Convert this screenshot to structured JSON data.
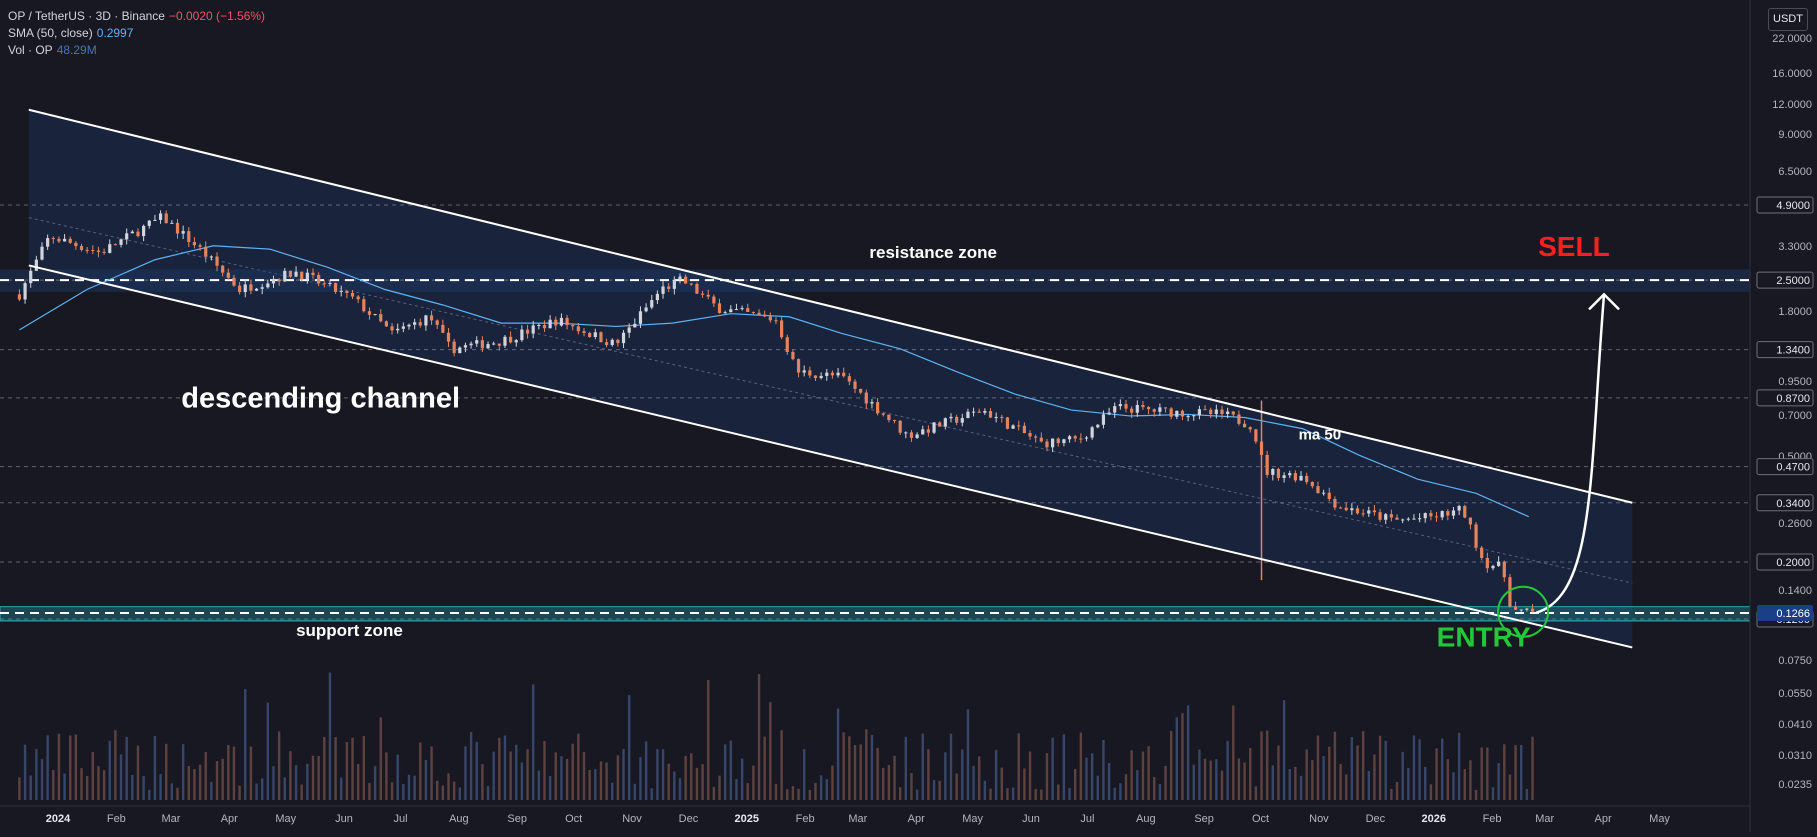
{
  "legend": {
    "symbol": "OP / TetherUS · 3D · Binance",
    "change": "−0.0020 (−1.56%)",
    "sma_label": "SMA (50, close)",
    "sma_value": "0.2997",
    "vol_label": "Vol · OP",
    "vol_value": "48.29M"
  },
  "currency": "USDT",
  "colors": {
    "background": "#181822",
    "channel_fill": "#1e3a66",
    "support_fill": "#1f6e7a",
    "up_candle": "#d1d4dc",
    "down_candle": "#e5845c",
    "sma_line": "#5eb2f3",
    "sell": "#ff1f1f",
    "entry": "#22c83a",
    "current_price": "#1b3f86"
  },
  "chart_data": {
    "type": "candlestick",
    "interval": "3D",
    "y_scale": "log",
    "x_ticks": [
      "2024",
      "Feb",
      "Mar",
      "Apr",
      "May",
      "Jun",
      "Jul",
      "Aug",
      "Sep",
      "Oct",
      "Nov",
      "Dec",
      "2025",
      "Feb",
      "Mar",
      "Apr",
      "May",
      "Jun",
      "Jul",
      "Aug",
      "Sep",
      "Oct",
      "Nov",
      "Dec",
      "2026",
      "Feb",
      "Mar",
      "Apr",
      "May"
    ],
    "y_ticks": [
      "22.0000",
      "16.0000",
      "12.0000",
      "9.0000",
      "6.5000",
      "3.3000",
      "1.8000",
      "0.9500",
      "0.7000",
      "0.5000",
      "0.2600",
      "0.1400",
      "0.0750",
      "0.0550",
      "0.0410",
      "0.0310",
      "0.0235"
    ],
    "price_levels": [
      {
        "value": 4.9,
        "label": "4.9000"
      },
      {
        "value": 2.5,
        "label": "2.5000"
      },
      {
        "value": 1.34,
        "label": "1.3400"
      },
      {
        "value": 0.87,
        "label": "0.8700"
      },
      {
        "value": 0.47,
        "label": "0.4700"
      },
      {
        "value": 0.34,
        "label": "0.3400"
      },
      {
        "value": 0.2,
        "label": "0.2000"
      },
      {
        "value": 0.12,
        "label": "0.1200"
      }
    ],
    "current_price": {
      "value": 0.1266,
      "label": "0.1266"
    },
    "closes_monthly": [
      {
        "date": "2023-12-20",
        "value": 2.2
      },
      {
        "date": "2024-01-05",
        "value": 3.7
      },
      {
        "date": "2024-02-01",
        "value": 3.2
      },
      {
        "date": "2024-03-05",
        "value": 4.4
      },
      {
        "date": "2024-03-25",
        "value": 3.3
      },
      {
        "date": "2024-04-15",
        "value": 2.3
      },
      {
        "date": "2024-05-15",
        "value": 2.7
      },
      {
        "date": "2024-06-15",
        "value": 2.1
      },
      {
        "date": "2024-07-05",
        "value": 1.55
      },
      {
        "date": "2024-07-25",
        "value": 1.8
      },
      {
        "date": "2024-08-05",
        "value": 1.35
      },
      {
        "date": "2024-09-01",
        "value": 1.45
      },
      {
        "date": "2024-10-01",
        "value": 1.75
      },
      {
        "date": "2024-11-01",
        "value": 1.4
      },
      {
        "date": "2024-11-25",
        "value": 2.3
      },
      {
        "date": "2024-12-06",
        "value": 2.5
      },
      {
        "date": "2024-12-25",
        "value": 1.95
      },
      {
        "date": "2025-01-25",
        "value": 1.75
      },
      {
        "date": "2025-02-05",
        "value": 1.1
      },
      {
        "date": "2025-03-01",
        "value": 1.05
      },
      {
        "date": "2025-04-05",
        "value": 0.62
      },
      {
        "date": "2025-05-15",
        "value": 0.78
      },
      {
        "date": "2025-06-15",
        "value": 0.58
      },
      {
        "date": "2025-07-05",
        "value": 0.6
      },
      {
        "date": "2025-07-25",
        "value": 0.8
      },
      {
        "date": "2025-08-20",
        "value": 0.77
      },
      {
        "date": "2025-09-20",
        "value": 0.75
      },
      {
        "date": "2025-10-05",
        "value": 0.68
      },
      {
        "date": "2025-10-12",
        "value": 0.45
      },
      {
        "date": "2025-11-01",
        "value": 0.43
      },
      {
        "date": "2025-11-20",
        "value": 0.33
      },
      {
        "date": "2025-12-20",
        "value": 0.29
      },
      {
        "date": "2026-01-10",
        "value": 0.3
      },
      {
        "date": "2026-01-25",
        "value": 0.32
      },
      {
        "date": "2026-02-05",
        "value": 0.2
      },
      {
        "date": "2026-02-15",
        "value": 0.19
      },
      {
        "date": "2026-02-20",
        "value": 0.13
      },
      {
        "date": "2026-03-01",
        "value": 0.1266
      }
    ],
    "sma50": [
      {
        "date": "2023-12-20",
        "value": 1.6
      },
      {
        "date": "2024-01-25",
        "value": 2.3
      },
      {
        "date": "2024-03-01",
        "value": 3.0
      },
      {
        "date": "2024-04-01",
        "value": 3.4
      },
      {
        "date": "2024-05-01",
        "value": 3.3
      },
      {
        "date": "2024-06-01",
        "value": 2.8
      },
      {
        "date": "2024-07-01",
        "value": 2.3
      },
      {
        "date": "2024-08-01",
        "value": 2.0
      },
      {
        "date": "2024-09-01",
        "value": 1.7
      },
      {
        "date": "2024-10-01",
        "value": 1.7
      },
      {
        "date": "2024-11-01",
        "value": 1.65
      },
      {
        "date": "2024-12-01",
        "value": 1.7
      },
      {
        "date": "2025-01-01",
        "value": 1.85
      },
      {
        "date": "2025-02-01",
        "value": 1.8
      },
      {
        "date": "2025-03-01",
        "value": 1.55
      },
      {
        "date": "2025-04-01",
        "value": 1.35
      },
      {
        "date": "2025-05-01",
        "value": 1.1
      },
      {
        "date": "2025-06-01",
        "value": 0.9
      },
      {
        "date": "2025-07-01",
        "value": 0.78
      },
      {
        "date": "2025-08-01",
        "value": 0.74
      },
      {
        "date": "2025-09-01",
        "value": 0.75
      },
      {
        "date": "2025-10-01",
        "value": 0.73
      },
      {
        "date": "2025-11-01",
        "value": 0.66
      },
      {
        "date": "2025-12-01",
        "value": 0.52
      },
      {
        "date": "2026-01-01",
        "value": 0.42
      },
      {
        "date": "2026-02-01",
        "value": 0.37
      },
      {
        "date": "2026-03-01",
        "value": 0.3
      }
    ],
    "descending_channel": {
      "upper": [
        {
          "date": "2023-12-25",
          "value": 11.5
        },
        {
          "date": "2026-04-25",
          "value": 0.34
        }
      ],
      "lower": [
        {
          "date": "2023-12-25",
          "value": 2.85
        },
        {
          "date": "2026-04-25",
          "value": 0.093
        }
      ]
    },
    "resistance_zone": {
      "low": 2.25,
      "high": 2.75
    },
    "support_zone": {
      "low": 0.118,
      "high": 0.134
    },
    "forecast_arrow": [
      {
        "date": "2026-03-05",
        "value": 0.127
      },
      {
        "date": "2026-03-26",
        "value": 0.17
      },
      {
        "date": "2026-04-05",
        "value": 0.45
      },
      {
        "date": "2026-04-10",
        "value": 2.2
      }
    ],
    "annotations": [
      {
        "text": "descending channel"
      },
      {
        "text": "resistance zone"
      },
      {
        "text": "support zone"
      },
      {
        "text": "ma 50"
      },
      {
        "text": "SELL"
      },
      {
        "text": "ENTRY"
      }
    ]
  }
}
